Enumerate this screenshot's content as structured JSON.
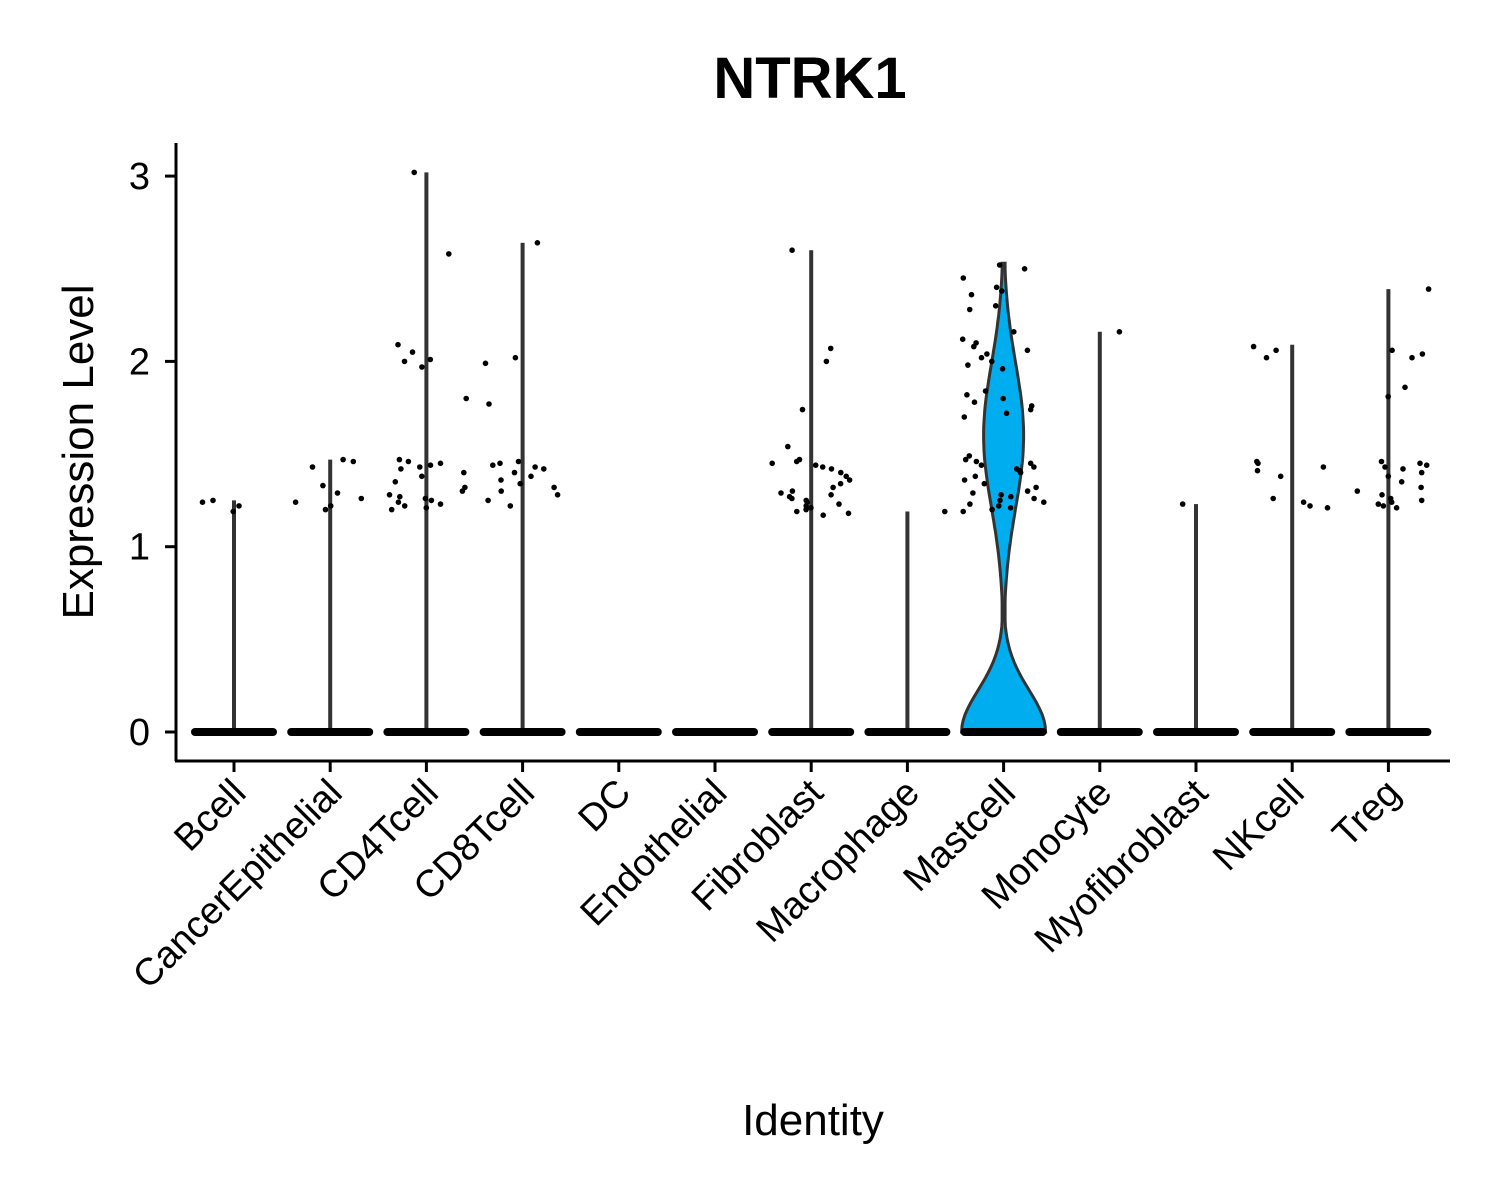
{
  "chart_data": {
    "type": "violin",
    "title": "NTRK1",
    "xlabel": "Identity",
    "ylabel": "Expression Level",
    "ylim": [
      -0.15,
      3.2
    ],
    "yticks": [
      0,
      1,
      2,
      3
    ],
    "categories": [
      "Bcell",
      "CancerEpithelial",
      "CD4Tcell",
      "CD8Tcell",
      "DC",
      "Endothelial",
      "Fibroblast",
      "Macrophage",
      "Mastcell",
      "Monocyte",
      "Myofibroblast",
      "NKcell",
      "Treg"
    ],
    "max_values": [
      1.25,
      1.47,
      3.02,
      2.64,
      0,
      0,
      2.6,
      1.19,
      2.53,
      2.16,
      1.23,
      2.09,
      2.39
    ],
    "nonzero_points": [
      [
        1.19,
        1.22,
        1.24,
        1.25
      ],
      [
        1.2,
        1.22,
        1.24,
        1.26,
        1.29,
        1.33,
        1.43,
        1.46,
        1.47
      ],
      [
        1.2,
        1.21,
        1.22,
        1.23,
        1.24,
        1.25,
        1.26,
        1.27,
        1.28,
        1.3,
        1.32,
        1.35,
        1.38,
        1.4,
        1.42,
        1.43,
        1.44,
        1.45,
        1.46,
        1.47,
        1.8,
        1.97,
        2.0,
        2.01,
        2.05,
        2.09,
        2.58,
        3.02
      ],
      [
        1.22,
        1.25,
        1.28,
        1.3,
        1.32,
        1.34,
        1.36,
        1.38,
        1.4,
        1.42,
        1.43,
        1.44,
        1.45,
        1.46,
        1.77,
        1.99,
        2.02,
        2.64
      ],
      [],
      [],
      [
        1.17,
        1.18,
        1.19,
        1.2,
        1.21,
        1.22,
        1.23,
        1.24,
        1.25,
        1.26,
        1.27,
        1.28,
        1.29,
        1.3,
        1.32,
        1.34,
        1.36,
        1.38,
        1.4,
        1.42,
        1.43,
        1.44,
        1.45,
        1.46,
        1.47,
        1.54,
        1.74,
        2.0,
        2.07,
        2.6
      ],
      [
        1.19
      ],
      [
        1.19,
        1.2,
        1.21,
        1.22,
        1.23,
        1.24,
        1.25,
        1.26,
        1.27,
        1.28,
        1.29,
        1.3,
        1.32,
        1.34,
        1.36,
        1.38,
        1.4,
        1.41,
        1.42,
        1.43,
        1.44,
        1.45,
        1.46,
        1.47,
        1.49,
        1.7,
        1.72,
        1.74,
        1.76,
        1.78,
        1.8,
        1.82,
        1.84,
        1.96,
        1.98,
        2.0,
        2.02,
        2.04,
        2.06,
        2.08,
        2.1,
        2.12,
        2.16,
        2.28,
        2.3,
        2.36,
        2.38,
        2.4,
        2.45,
        2.5,
        2.52
      ],
      [
        2.16
      ],
      [
        1.23
      ],
      [
        1.21,
        1.22,
        1.24,
        1.26,
        1.38,
        1.41,
        1.43,
        1.45,
        1.46,
        2.02,
        2.06,
        2.08
      ],
      [
        1.21,
        1.22,
        1.23,
        1.24,
        1.25,
        1.26,
        1.28,
        1.3,
        1.32,
        1.35,
        1.38,
        1.4,
        1.42,
        1.43,
        1.44,
        1.45,
        1.46,
        1.81,
        1.86,
        2.02,
        2.04,
        2.06,
        2.39
      ]
    ],
    "filled_violin": "Mastcell",
    "fill_color": "#00ADEF",
    "line_color": "#333333",
    "grid": false,
    "legend": "none"
  }
}
